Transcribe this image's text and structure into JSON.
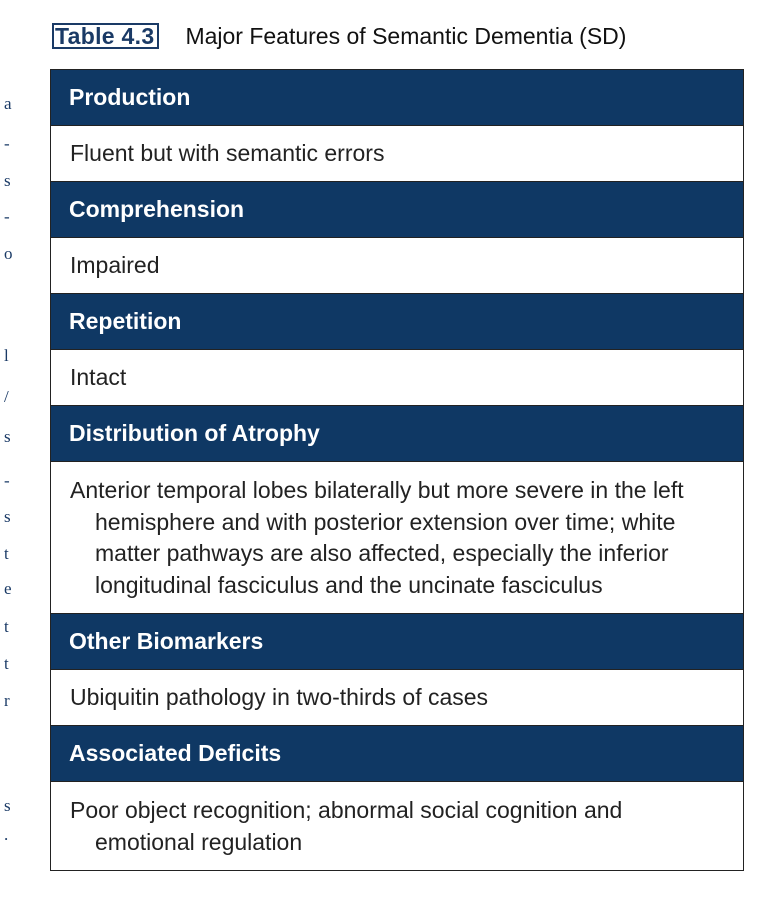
{
  "caption": {
    "label": "Table 4.3",
    "title": "Major Features of Semantic Dementia (SD)"
  },
  "gutter_marks": [
    "a",
    "-",
    "s",
    "-",
    "o",
    "l",
    "/",
    "s",
    "-",
    "s",
    "t",
    "e",
    "t",
    "t",
    "r",
    "s",
    "."
  ],
  "rows": [
    {
      "heading": "Production",
      "content": "Fluent but with semantic errors"
    },
    {
      "heading": "Comprehension",
      "content": "Impaired"
    },
    {
      "heading": "Repetition",
      "content": "Intact"
    },
    {
      "heading": "Distribution of Atrophy",
      "content": "Anterior temporal lobes bilaterally but more severe in the left hemisphere and with posterior extension over time; white matter pathways are also affected, especially the inferior longitudinal fasciculus and the uncinate fasciculus"
    },
    {
      "heading": "Other Biomarkers",
      "content": "Ubiquitin pathology in two-thirds of cases"
    },
    {
      "heading": "Associated Deficits",
      "content": "Poor object recognition; abnormal social cognition and emotional regulation"
    }
  ]
}
